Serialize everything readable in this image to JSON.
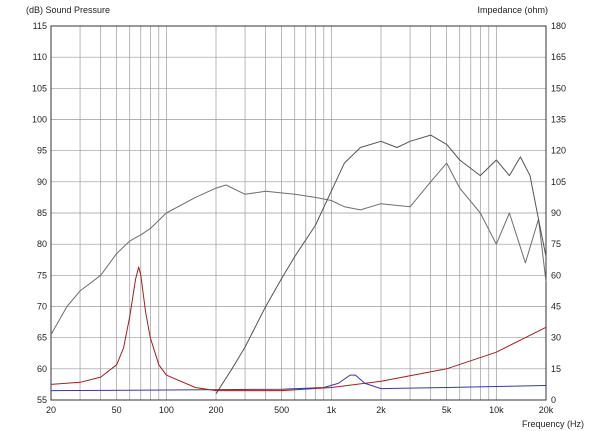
{
  "chart_data": {
    "type": "line",
    "title": "",
    "ylabel": "(dB)  Sound Pressure",
    "ylabel_right": "Impedance  (ohm)",
    "xlabel": "Frequency  (Hz)",
    "x_scale": "log",
    "xlim": [
      20,
      20000
    ],
    "ylim": [
      55,
      115
    ],
    "y2lim": [
      0,
      180
    ],
    "grid": true,
    "legend": "none",
    "x_ticks": [
      20,
      50,
      100,
      200,
      500,
      1000,
      2000,
      5000,
      10000,
      20000
    ],
    "x_tick_labels": [
      "20",
      "50",
      "100",
      "200",
      "500",
      "1k",
      "2k",
      "5k",
      "10k",
      "20k"
    ],
    "y_ticks": [
      55,
      60,
      65,
      70,
      75,
      80,
      85,
      90,
      95,
      100,
      105,
      110,
      115
    ],
    "y_tick_labels": [
      "55",
      "60",
      "65",
      "70",
      "75",
      "80",
      "85",
      "90",
      "95",
      "100",
      "105",
      "110",
      "115"
    ],
    "y2_ticks": [
      0,
      15,
      30,
      45,
      60,
      75,
      90,
      105,
      120,
      135,
      150,
      165,
      180
    ],
    "y2_tick_labels": [
      "0",
      "15",
      "30",
      "45",
      "60",
      "75",
      "90",
      "105",
      "120",
      "135",
      "150",
      "165",
      "180"
    ],
    "series": [
      {
        "axis": "left",
        "color": "#6e6e6e",
        "x": [
          20,
          25,
          30,
          40,
          50,
          60,
          70,
          80,
          100,
          150,
          200,
          230,
          300,
          400,
          600,
          800,
          1000,
          1200,
          1500,
          2000,
          3000,
          4000,
          5000,
          6000,
          8000,
          10000,
          12000,
          15000,
          18000,
          20000
        ],
        "y": [
          65.5,
          70,
          72.5,
          75,
          78.5,
          80.5,
          81.5,
          82.5,
          85,
          87.5,
          89,
          89.5,
          88,
          88.5,
          88,
          87.5,
          87,
          86,
          85.5,
          86.5,
          86,
          90,
          93,
          89,
          85,
          80,
          85,
          77,
          84,
          74
        ]
      },
      {
        "axis": "left",
        "color": "#555555",
        "x": [
          200,
          250,
          300,
          400,
          500,
          600,
          800,
          1000,
          1200,
          1500,
          2000,
          2500,
          3000,
          4000,
          5000,
          6000,
          8000,
          10000,
          12000,
          14000,
          16000,
          18000,
          20000
        ],
        "y": [
          56,
          60,
          63.5,
          70,
          74.5,
          78,
          83,
          88.5,
          93,
          95.5,
          96.5,
          95.5,
          96.5,
          97.5,
          96,
          93.5,
          91,
          93.5,
          91,
          94,
          91,
          84,
          78
        ]
      },
      {
        "axis": "right",
        "color": "#a02020",
        "x": [
          20,
          30,
          40,
          50,
          55,
          60,
          65,
          68,
          70,
          75,
          80,
          90,
          100,
          150,
          200,
          500,
          1000,
          2000,
          5000,
          10000,
          20000
        ],
        "y": [
          7.5,
          8.5,
          11,
          17,
          25,
          40,
          58,
          64,
          60,
          42,
          30,
          17,
          12,
          6,
          4.5,
          4.5,
          6,
          9,
          15,
          23,
          35
        ]
      },
      {
        "axis": "right",
        "color": "#3a3a9a",
        "x": [
          20,
          100,
          500,
          900,
          1100,
          1300,
          1400,
          1600,
          2000,
          5000,
          20000
        ],
        "y": [
          4.5,
          4.8,
          5.2,
          6,
          8,
          12,
          12,
          8,
          5.5,
          6,
          7
        ]
      }
    ]
  }
}
